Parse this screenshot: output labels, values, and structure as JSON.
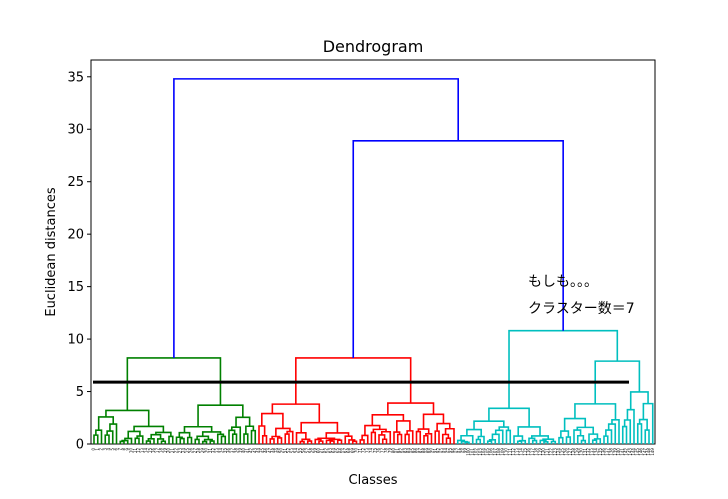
{
  "chart_data": {
    "type": "dendrogram",
    "title": "Dendrogram",
    "xlabel": "Classes",
    "ylabel": "Euclidean distances",
    "ylim": [
      0,
      36.6
    ],
    "yticks": [
      0,
      5,
      10,
      15,
      20,
      25,
      30,
      35
    ],
    "grid": false,
    "leaf_count": 150,
    "cut_height": 5.9,
    "clusters": [
      {
        "color": "#008000",
        "leaves": 44,
        "height": 8.2
      },
      {
        "color": "#ff0000",
        "leaves": 53,
        "height": 8.2
      },
      {
        "color": "#00bfbf",
        "leaves": 53,
        "height": 10.8
      }
    ],
    "top_links": [
      {
        "join": "red+cyan",
        "height": 28.9
      },
      {
        "join": "green+rest",
        "height": 34.8
      }
    ],
    "link_color": "#0000ff",
    "cut_line_color": "#000000",
    "annotations": [
      "もしも。。。",
      "クラスター数＝7"
    ]
  }
}
